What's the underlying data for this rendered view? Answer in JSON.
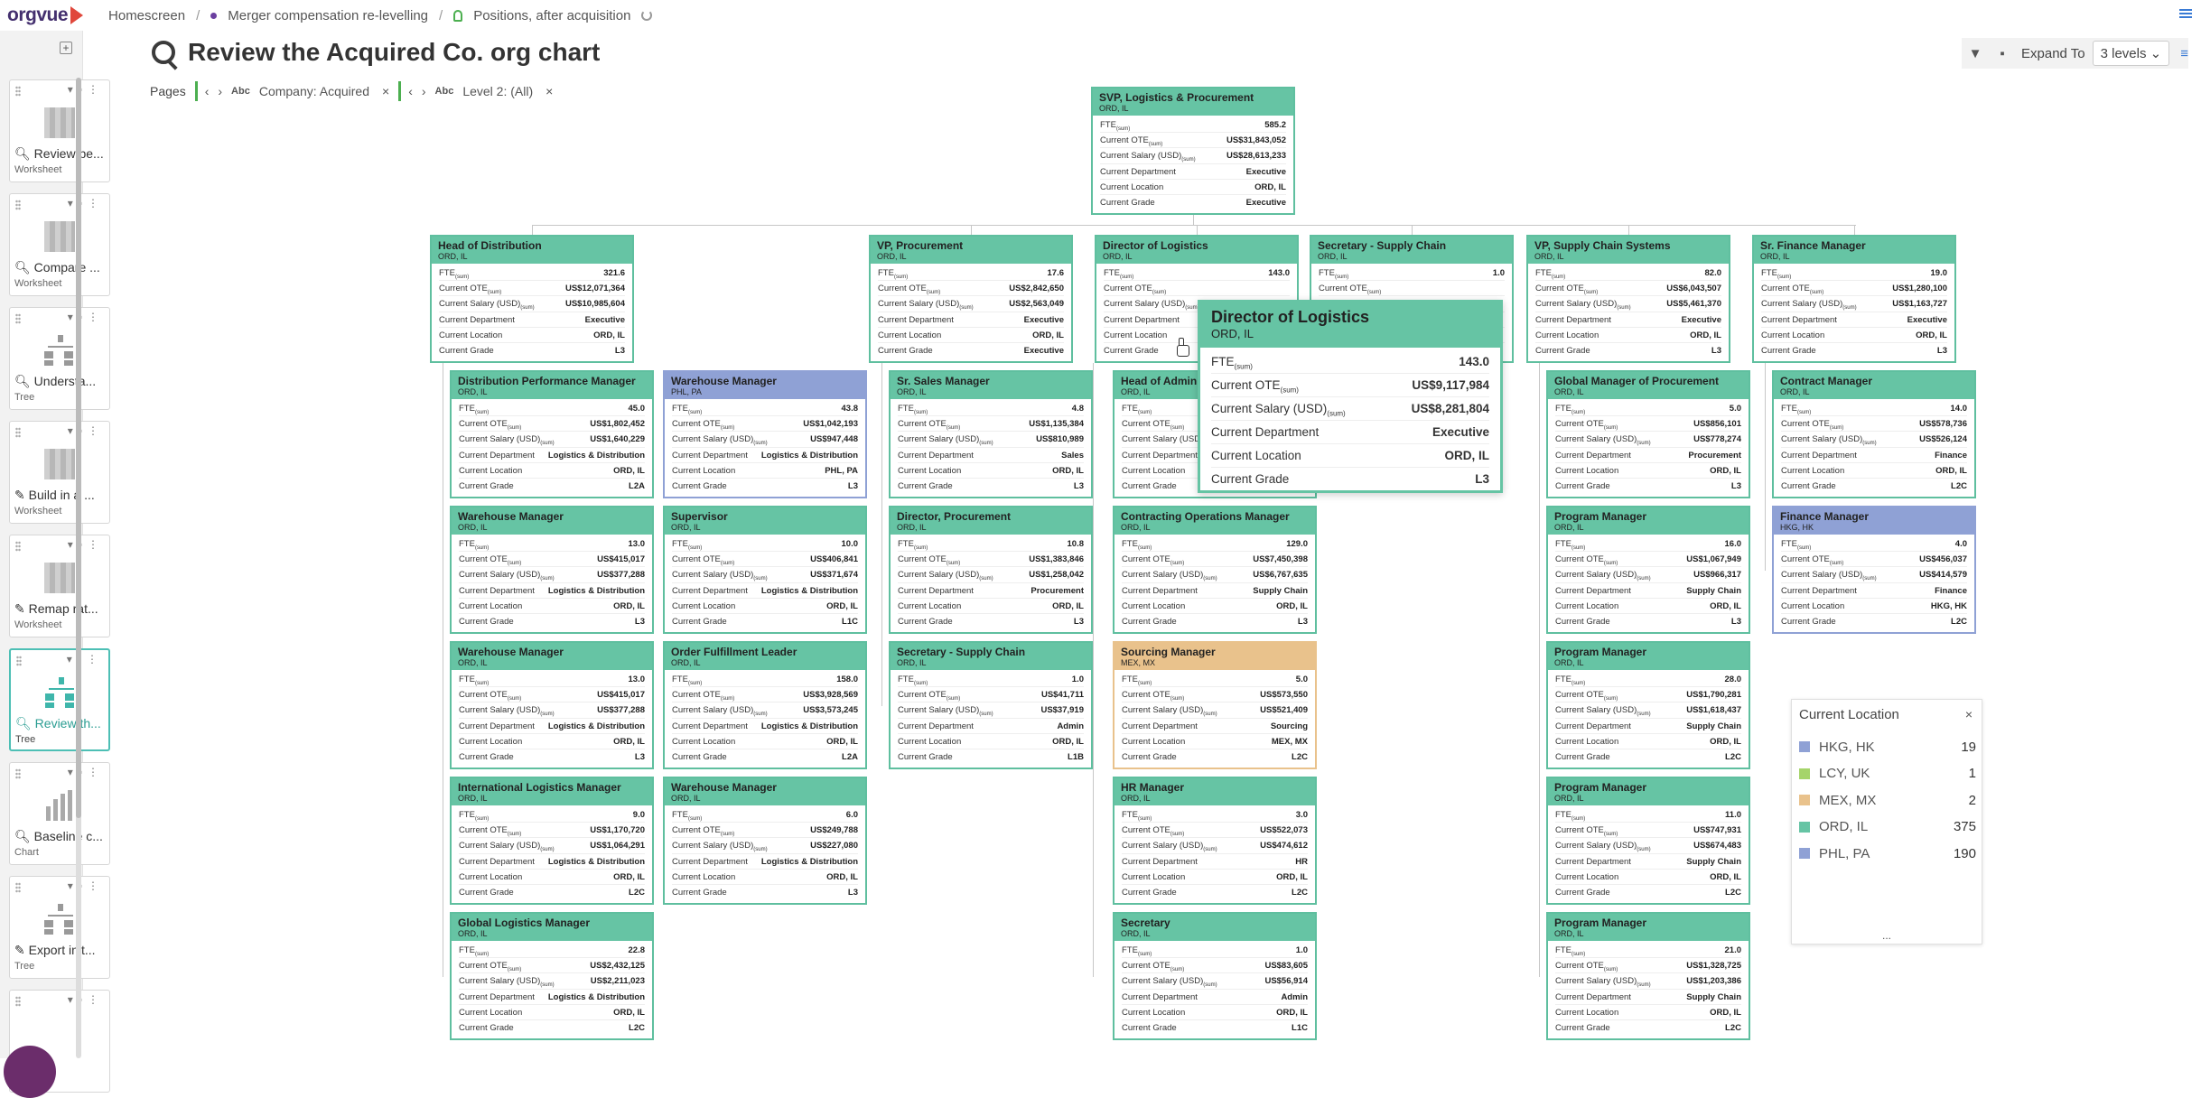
{
  "topbar": {
    "logo": "orgvue",
    "breadcrumbs": [
      "Homescreen",
      "Merger compensation re-levelling",
      "Positions, after acquisition"
    ]
  },
  "sidebar": {
    "add_label": "+",
    "cards": [
      {
        "title": "Review pe...",
        "type": "Worksheet",
        "icon": "search-icon",
        "thumb": "worksheet"
      },
      {
        "title": "Compare ...",
        "type": "Worksheet",
        "icon": "search-icon",
        "thumb": "worksheet"
      },
      {
        "title": "Understa...",
        "type": "Tree",
        "icon": "search-icon",
        "thumb": "tree"
      },
      {
        "title": "Build in a ...",
        "type": "Worksheet",
        "icon": "pencil-icon",
        "thumb": "worksheet"
      },
      {
        "title": "Remap rat...",
        "type": "Worksheet",
        "icon": "pencil-icon",
        "thumb": "worksheet"
      },
      {
        "title": "Review th...",
        "type": "Tree",
        "icon": "search-icon",
        "thumb": "tree",
        "active": true
      },
      {
        "title": "Baseline c...",
        "type": "Chart",
        "icon": "search-icon",
        "thumb": "chart"
      },
      {
        "title": "Export init...",
        "type": "Tree",
        "icon": "pencil-icon",
        "thumb": "tree"
      },
      {
        "title": "...nt",
        "type": "",
        "icon": "",
        "thumb": ""
      }
    ]
  },
  "page": {
    "title": "Review the Acquired Co. org chart",
    "pages_label": "Pages",
    "filters": [
      {
        "type": "Abc",
        "label": "Company: Acquired"
      },
      {
        "type": "Abc",
        "label": "Level 2: (All)"
      }
    ]
  },
  "toolbar": {
    "expand_label": "Expand To",
    "levels_value": "3 levels"
  },
  "field_labels": {
    "fte": "FTE",
    "sum": "(sum)",
    "ote": "Current OTE",
    "salary": "Current Salary (USD)",
    "dept": "Current Department",
    "loc": "Current Location",
    "grade": "Current Grade"
  },
  "nodes": [
    {
      "id": "svp",
      "title": "SVP, Logistics & Procurement",
      "loc": "ORD, IL",
      "fte": "585.2",
      "ote": "US$31,843,052",
      "salary": "US$28,613,233",
      "dept": "Executive",
      "location": "ORD, IL",
      "grade": "Executive"
    },
    {
      "id": "hod",
      "title": "Head of Distribution",
      "loc": "ORD, IL",
      "fte": "321.6",
      "ote": "US$12,071,364",
      "salary": "US$10,985,604",
      "dept": "Executive",
      "location": "ORD, IL",
      "grade": "L3"
    },
    {
      "id": "vpp",
      "title": "VP, Procurement",
      "loc": "ORD, IL",
      "fte": "17.6",
      "ote": "US$2,842,650",
      "salary": "US$2,563,049",
      "dept": "Executive",
      "location": "ORD, IL",
      "grade": "Executive"
    },
    {
      "id": "dol",
      "title": "Director of Logistics",
      "loc": "ORD, IL",
      "fte": "143.0",
      "ote": "",
      "salary": "",
      "dept": "",
      "location": "",
      "grade": ""
    },
    {
      "id": "ssc",
      "title": "Secretary - Supply Chain",
      "loc": "ORD, IL",
      "fte": "1.0",
      "ote": "",
      "salary": "",
      "dept": "",
      "location": "",
      "grade": ""
    },
    {
      "id": "vpsc",
      "title": "VP, Supply Chain Systems",
      "loc": "ORD, IL",
      "fte": "82.0",
      "ote": "US$6,043,507",
      "salary": "US$5,461,370",
      "dept": "Executive",
      "location": "ORD, IL",
      "grade": "L3"
    },
    {
      "id": "sfm",
      "title": "Sr. Finance Manager",
      "loc": "ORD, IL",
      "fte": "19.0",
      "ote": "US$1,280,100",
      "salary": "US$1,163,727",
      "dept": "Executive",
      "location": "ORD, IL",
      "grade": "L3"
    },
    {
      "id": "dpm",
      "title": "Distribution Performance Manager",
      "loc": "ORD, IL",
      "fte": "45.0",
      "ote": "US$1,802,452",
      "salary": "US$1,640,229",
      "dept": "Logistics & Distribution",
      "location": "ORD, IL",
      "grade": "L2A"
    },
    {
      "id": "wm1",
      "title": "Warehouse Manager",
      "loc": "PHL, PA",
      "fte": "43.8",
      "ote": "US$1,042,193",
      "salary": "US$947,448",
      "dept": "Logistics & Distribution",
      "location": "PHL, PA",
      "grade": "L3",
      "color": "phl"
    },
    {
      "id": "ssm",
      "title": "Sr. Sales Manager",
      "loc": "ORD, IL",
      "fte": "4.8",
      "ote": "US$1,135,384",
      "salary": "US$810,989",
      "dept": "Sales",
      "location": "ORD, IL",
      "grade": "L3"
    },
    {
      "id": "hoa",
      "title": "Head of Admin",
      "loc": "ORD, IL",
      "fte": "",
      "ote": "",
      "salary": "",
      "dept": "",
      "location": "",
      "grade": ""
    },
    {
      "id": "gmp",
      "title": "Global Manager of Procurement",
      "loc": "ORD, IL",
      "fte": "5.0",
      "ote": "US$856,101",
      "salary": "US$778,274",
      "dept": "Procurement",
      "location": "ORD, IL",
      "grade": "L3"
    },
    {
      "id": "cm",
      "title": "Contract Manager",
      "loc": "ORD, IL",
      "fte": "14.0",
      "ote": "US$578,736",
      "salary": "US$526,124",
      "dept": "Finance",
      "location": "ORD, IL",
      "grade": "L2C"
    },
    {
      "id": "wm2",
      "title": "Warehouse Manager",
      "loc": "ORD, IL",
      "fte": "13.0",
      "ote": "US$415,017",
      "salary": "US$377,288",
      "dept": "Logistics & Distribution",
      "location": "ORD, IL",
      "grade": "L3"
    },
    {
      "id": "sup",
      "title": "Supervisor",
      "loc": "ORD, IL",
      "fte": "10.0",
      "ote": "US$406,841",
      "salary": "US$371,674",
      "dept": "Logistics & Distribution",
      "location": "ORD, IL",
      "grade": "L1C"
    },
    {
      "id": "dp",
      "title": "Director, Procurement",
      "loc": "ORD, IL",
      "fte": "10.8",
      "ote": "US$1,383,846",
      "salary": "US$1,258,042",
      "dept": "Procurement",
      "location": "ORD, IL",
      "grade": "L3"
    },
    {
      "id": "com",
      "title": "Contracting Operations Manager",
      "loc": "ORD, IL",
      "fte": "129.0",
      "ote": "US$7,450,398",
      "salary": "US$6,767,635",
      "dept": "Supply Chain",
      "location": "ORD, IL",
      "grade": "L3"
    },
    {
      "id": "pm1",
      "title": "Program Manager",
      "loc": "ORD, IL",
      "fte": "16.0",
      "ote": "US$1,067,949",
      "salary": "US$966,317",
      "dept": "Supply Chain",
      "location": "ORD, IL",
      "grade": "L3"
    },
    {
      "id": "fm",
      "title": "Finance Manager",
      "loc": "HKG, HK",
      "fte": "4.0",
      "ote": "US$456,037",
      "salary": "US$414,579",
      "dept": "Finance",
      "location": "HKG, HK",
      "grade": "L2C",
      "color": "phl"
    },
    {
      "id": "wm3",
      "title": "Warehouse Manager",
      "loc": "ORD, IL",
      "fte": "13.0",
      "ote": "US$415,017",
      "salary": "US$377,288",
      "dept": "Logistics & Distribution",
      "location": "ORD, IL",
      "grade": "L3"
    },
    {
      "id": "ofl",
      "title": "Order Fulfillment Leader",
      "loc": "ORD, IL",
      "fte": "158.0",
      "ote": "US$3,928,569",
      "salary": "US$3,573,245",
      "dept": "Logistics & Distribution",
      "location": "ORD, IL",
      "grade": "L2A"
    },
    {
      "id": "ssc2",
      "title": "Secretary - Supply Chain",
      "loc": "ORD, IL",
      "fte": "1.0",
      "ote": "US$41,711",
      "salary": "US$37,919",
      "dept": "Admin",
      "location": "ORD, IL",
      "grade": "L1B"
    },
    {
      "id": "som",
      "title": "Sourcing Manager",
      "loc": "MEX, MX",
      "fte": "5.0",
      "ote": "US$573,550",
      "salary": "US$521,409",
      "dept": "Sourcing",
      "location": "MEX, MX",
      "grade": "L2C",
      "color": "mex"
    },
    {
      "id": "pm2",
      "title": "Program Manager",
      "loc": "ORD, IL",
      "fte": "28.0",
      "ote": "US$1,790,281",
      "salary": "US$1,618,437",
      "dept": "Supply Chain",
      "location": "ORD, IL",
      "grade": "L2C"
    },
    {
      "id": "ilm",
      "title": "International Logistics Manager",
      "loc": "ORD, IL",
      "fte": "9.0",
      "ote": "US$1,170,720",
      "salary": "US$1,064,291",
      "dept": "Logistics & Distribution",
      "location": "ORD, IL",
      "grade": "L2C"
    },
    {
      "id": "wm4",
      "title": "Warehouse Manager",
      "loc": "ORD, IL",
      "fte": "6.0",
      "ote": "US$249,788",
      "salary": "US$227,080",
      "dept": "Logistics & Distribution",
      "location": "ORD, IL",
      "grade": "L3"
    },
    {
      "id": "hrm",
      "title": "HR Manager",
      "loc": "ORD, IL",
      "fte": "3.0",
      "ote": "US$522,073",
      "salary": "US$474,612",
      "dept": "HR",
      "location": "ORD, IL",
      "grade": "L2C"
    },
    {
      "id": "pm3",
      "title": "Program Manager",
      "loc": "ORD, IL",
      "fte": "11.0",
      "ote": "US$747,931",
      "salary": "US$674,483",
      "dept": "Supply Chain",
      "location": "ORD, IL",
      "grade": "L2C"
    },
    {
      "id": "glm",
      "title": "Global Logistics Manager",
      "loc": "ORD, IL",
      "fte": "22.8",
      "ote": "US$2,432,125",
      "salary": "US$2,211,023",
      "dept": "Logistics & Distribution",
      "location": "ORD, IL",
      "grade": "L2C"
    },
    {
      "id": "sec",
      "title": "Secretary",
      "loc": "ORD, IL",
      "fte": "1.0",
      "ote": "US$83,605",
      "salary": "US$56,914",
      "dept": "Admin",
      "location": "ORD, IL",
      "grade": "L1C"
    },
    {
      "id": "pm4",
      "title": "Program Manager",
      "loc": "ORD, IL",
      "fte": "21.0",
      "ote": "US$1,328,725",
      "salary": "US$1,203,386",
      "dept": "Supply Chain",
      "location": "ORD, IL",
      "grade": "L2C"
    }
  ],
  "tooltip": {
    "title": "Director of Logistics",
    "loc": "ORD, IL",
    "fte": "143.0",
    "ote": "US$9,117,984",
    "salary": "US$8,281,804",
    "dept": "Executive",
    "location": "ORD, IL",
    "grade": "L3"
  },
  "legend": {
    "title": "Current Location",
    "items": [
      {
        "label": "HKG, HK",
        "count": "19",
        "color": "#8fa1d5"
      },
      {
        "label": "LCY, UK",
        "count": "1",
        "color": "#a5d46a"
      },
      {
        "label": "MEX, MX",
        "count": "2",
        "color": "#e9c28c"
      },
      {
        "label": "ORD, IL",
        "count": "375",
        "color": "#66c4a4"
      },
      {
        "label": "PHL, PA",
        "count": "190",
        "color": "#8fa1d5"
      }
    ],
    "more": "..."
  }
}
